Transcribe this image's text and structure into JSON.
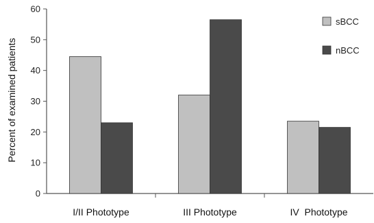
{
  "chart_data": {
    "type": "bar",
    "categories": [
      "I/II Phototype",
      "III Phototype",
      "IV  Phototype"
    ],
    "series": [
      {
        "name": "sBCC",
        "values": [
          44.5,
          32,
          23.5
        ],
        "color": "#c0c0c0"
      },
      {
        "name": "nBCC",
        "values": [
          23,
          56.5,
          21.5
        ],
        "color": "#4a4a4a"
      }
    ],
    "ylabel": "Percent of examined patients",
    "xlabel": "",
    "ylim": [
      0,
      60
    ],
    "yticks": [
      0,
      10,
      20,
      30,
      40,
      50,
      60
    ],
    "grid": false,
    "legend_position": "top-right"
  }
}
